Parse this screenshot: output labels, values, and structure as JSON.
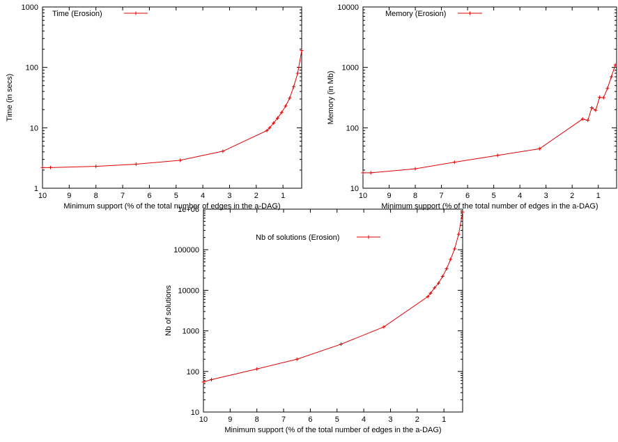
{
  "chart_data": [
    {
      "type": "line",
      "xscale": "reversed-linear",
      "yscale": "log",
      "xlim": [
        10,
        0.3
      ],
      "ylim": [
        1,
        1000
      ],
      "xticks": [
        "10",
        "9",
        "8",
        "7",
        "6",
        "5",
        "4",
        "3",
        "2",
        "1"
      ],
      "yticks": [
        "1",
        "10",
        "100",
        "1000"
      ],
      "xlabel": "Minimum support (% of the total number of edges in the a-DAG)",
      "ylabel": "Time (in secs)",
      "grid": false,
      "legend_position": "top-left",
      "series": [
        {
          "name": "Time (Erosion)",
          "color": "#e00000",
          "x": [
            10,
            9.7,
            8,
            6.5,
            4.85,
            3.25,
            1.6,
            1.5,
            1.35,
            1.2,
            1.05,
            0.9,
            0.75,
            0.6,
            0.45,
            0.3
          ],
          "y": [
            2.2,
            2.2,
            2.3,
            2.5,
            2.9,
            4.1,
            9.0,
            10.0,
            12.0,
            14.5,
            18.0,
            23.0,
            31.0,
            48.0,
            80.0,
            190.0
          ]
        }
      ]
    },
    {
      "type": "line",
      "xscale": "reversed-linear",
      "yscale": "log",
      "xlim": [
        10,
        0.3
      ],
      "ylim": [
        10,
        10000
      ],
      "xticks": [
        "10",
        "9",
        "8",
        "7",
        "6",
        "5",
        "4",
        "3",
        "2",
        "1"
      ],
      "yticks": [
        "10",
        "100",
        "1000",
        "10000"
      ],
      "xlabel": "Minimum support (% of the total number of edges in the a-DAG)",
      "ylabel": "Memory (in Mb)",
      "grid": false,
      "legend_position": "top-left",
      "series": [
        {
          "name": "Memory (Erosion)",
          "color": "#e00000",
          "x": [
            10,
            9.7,
            8,
            6.5,
            4.85,
            3.25,
            1.6,
            1.4,
            1.25,
            1.1,
            0.95,
            0.8,
            0.65,
            0.5,
            0.35
          ],
          "y": [
            18,
            18,
            21,
            27,
            35,
            45,
            140,
            133,
            215,
            195,
            320,
            315,
            450,
            700,
            1100
          ]
        }
      ]
    },
    {
      "type": "line",
      "xscale": "reversed-linear",
      "yscale": "log",
      "xlim": [
        10,
        0.3
      ],
      "ylim": [
        10,
        1000000
      ],
      "xticks": [
        "10",
        "9",
        "8",
        "7",
        "6",
        "5",
        "4",
        "3",
        "2",
        "1"
      ],
      "yticks": [
        "10",
        "100",
        "1000",
        "10000",
        "100000",
        "1e+06"
      ],
      "xlabel": "Minimum support (% of the total number of edges in the a-DAG)",
      "ylabel": "Nb of solutions",
      "grid": false,
      "legend_position": "top-center",
      "series": [
        {
          "name": "Nb of solutions (Erosion)",
          "color": "#e00000",
          "x": [
            10,
            9.7,
            8,
            6.5,
            4.85,
            3.25,
            1.6,
            1.5,
            1.35,
            1.2,
            1.05,
            0.9,
            0.75,
            0.6,
            0.45,
            0.3
          ],
          "y": [
            55,
            63,
            115,
            200,
            470,
            1250,
            7000,
            8500,
            11500,
            15000,
            22000,
            34000,
            58000,
            105000,
            240000,
            850000
          ]
        }
      ]
    }
  ]
}
